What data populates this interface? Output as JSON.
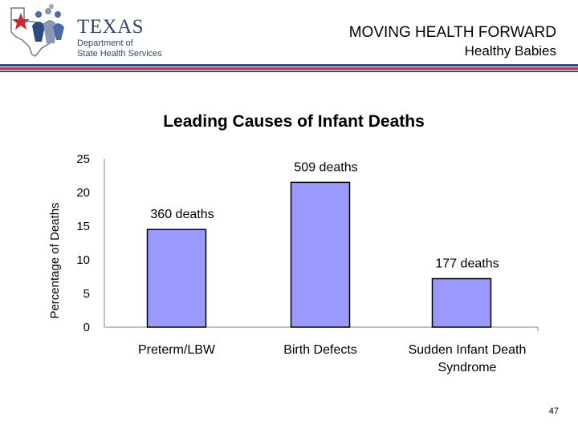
{
  "header": {
    "logo": {
      "word": "TEXAS",
      "line1": "Department of",
      "line2": "State Health Services"
    },
    "title": "MOVING HEALTH FORWARD",
    "subtitle": "Healthy Babies"
  },
  "colors": {
    "bar": "#9999ff",
    "rule_blue": "#2f4a7f",
    "rule_red": "#c42b33"
  },
  "chart_data": {
    "type": "bar",
    "title": "Leading Causes of Infant Deaths",
    "xlabel": "",
    "ylabel": "Percentage of Deaths",
    "ylim": [
      0,
      25
    ],
    "yticks": [
      0,
      5,
      10,
      15,
      20,
      25
    ],
    "grid": false,
    "categories": [
      [
        "Preterm/LBW"
      ],
      [
        "Birth Defects"
      ],
      [
        "Sudden Infant Death",
        "Syndrome"
      ]
    ],
    "values": [
      14.5,
      21.5,
      7.2
    ],
    "data_labels": [
      "360 deaths",
      "509 deaths",
      "177 deaths"
    ]
  },
  "page_number": "47"
}
